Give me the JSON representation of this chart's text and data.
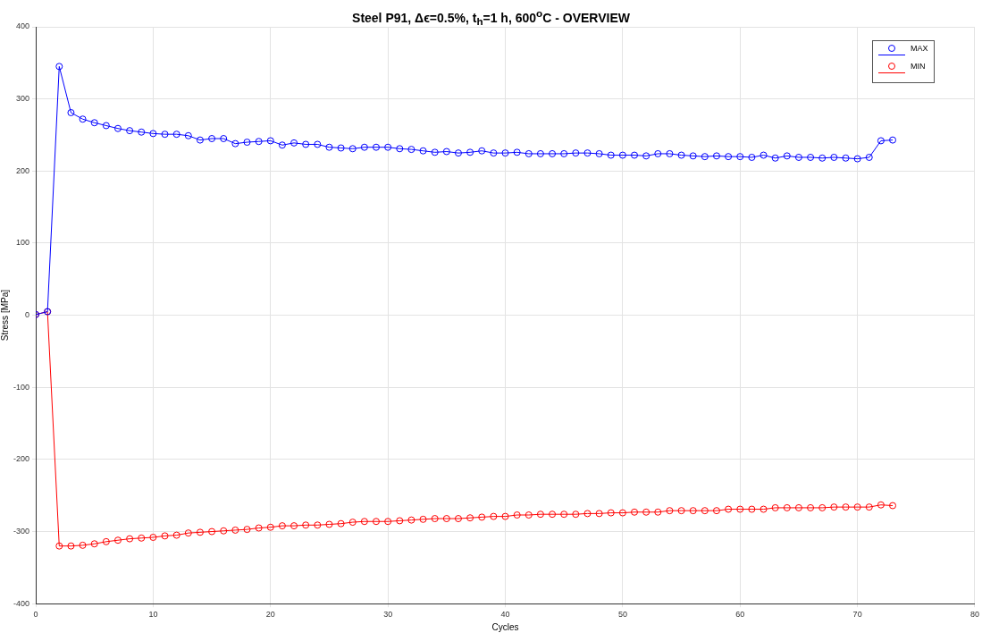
{
  "chart_data": {
    "type": "line",
    "title": "Steel P91, Δϵ=0.5%, t$_{h}$=1 h, 600$^{o}$C - OVERVIEW",
    "xlabel": "Cycles",
    "ylabel": "Stress [MPa]",
    "x": [
      0,
      1,
      2,
      3,
      4,
      5,
      6,
      7,
      8,
      9,
      10,
      11,
      12,
      13,
      14,
      15,
      16,
      17,
      18,
      19,
      20,
      21,
      22,
      23,
      24,
      25,
      26,
      27,
      28,
      29,
      30,
      31,
      32,
      33,
      34,
      35,
      36,
      37,
      38,
      39,
      40,
      41,
      42,
      43,
      44,
      45,
      46,
      47,
      48,
      49,
      50,
      51,
      52,
      53,
      54,
      55,
      56,
      57,
      58,
      59,
      60,
      61,
      62,
      63,
      64,
      65,
      66,
      67,
      68,
      69,
      70,
      71,
      72,
      73
    ],
    "series": [
      {
        "name": "MAX",
        "color": "#0000ff",
        "values": [
          1,
          5,
          345,
          281,
          272,
          267,
          263,
          259,
          256,
          254,
          252,
          251,
          251,
          249,
          243,
          245,
          245,
          238,
          240,
          241,
          242,
          236,
          239,
          237,
          237,
          233,
          232,
          231,
          233,
          233,
          233,
          231,
          230,
          228,
          226,
          227,
          225,
          226,
          228,
          225,
          225,
          226,
          224,
          224,
          224,
          224,
          225,
          225,
          224,
          222,
          222,
          222,
          221,
          224,
          224,
          222,
          221,
          220,
          221,
          220,
          220,
          219,
          222,
          218,
          221,
          219,
          219,
          218,
          219,
          218,
          217,
          219,
          242,
          243
        ]
      },
      {
        "name": "MIN",
        "color": "#ff0000",
        "values": [
          1,
          5,
          -320,
          -320,
          -319,
          -317,
          -314,
          -312,
          -310,
          -309,
          -308,
          -306,
          -305,
          -302,
          -301,
          -300,
          -299,
          -298,
          -297,
          -295,
          -294,
          -292,
          -292,
          -291,
          -291,
          -290,
          -289,
          -287,
          -286,
          -286,
          -286,
          -285,
          -284,
          -283,
          -282,
          -282,
          -282,
          -281,
          -280,
          -279,
          -279,
          -277,
          -277,
          -276,
          -276,
          -276,
          -276,
          -275,
          -275,
          -274,
          -274,
          -273,
          -273,
          -273,
          -271,
          -271,
          -271,
          -271,
          -271,
          -269,
          -269,
          -269,
          -269,
          -267,
          -267,
          -267,
          -267,
          -267,
          -266,
          -266,
          -266,
          -266,
          -263,
          -264
        ]
      }
    ],
    "xlim": [
      0,
      80
    ],
    "xticks": [
      0,
      10,
      20,
      30,
      40,
      50,
      60,
      70,
      80
    ],
    "ylim": [
      -400,
      400
    ],
    "yticks": [
      -400,
      -300,
      -200,
      -100,
      0,
      100,
      200,
      300,
      400
    ],
    "grid": true,
    "legend": "top right",
    "marker": "circle",
    "line_style": "solid"
  }
}
